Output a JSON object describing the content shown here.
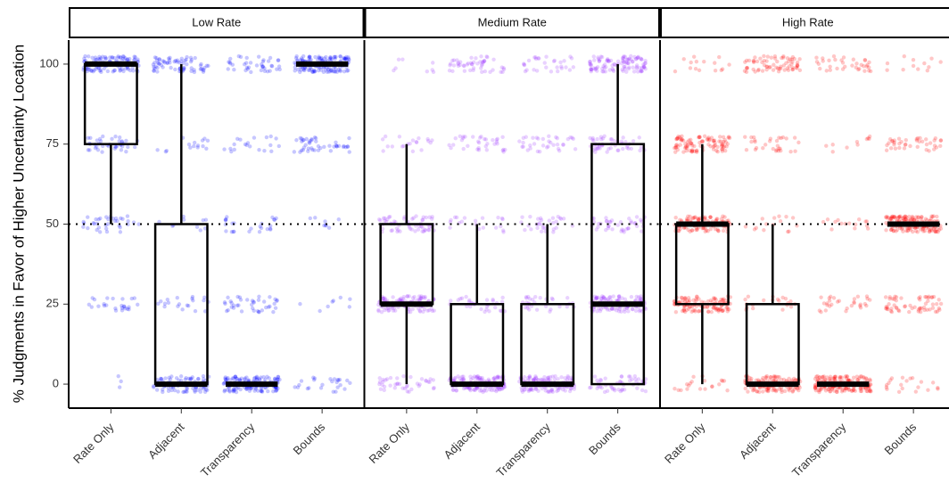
{
  "chart_data": {
    "type": "box",
    "y_label": "% Judgments in Favor of Higher Uncertainty Location",
    "categories": [
      "Rate Only",
      "Adjacent",
      "Transparency",
      "Bounds"
    ],
    "ylim": [
      -7.5,
      107.5
    ],
    "yticks": [
      0,
      25,
      50,
      75,
      100
    ],
    "hline": 50,
    "levels": [
      0,
      25,
      50,
      75,
      100
    ],
    "facets": [
      {
        "title": "Low Rate",
        "color": "#0000ff",
        "boxes": [
          {
            "min": 50,
            "q1": 75,
            "median": 100,
            "q3": 100,
            "max": 100,
            "counts": [
              3,
              25,
              35,
              40,
              120
            ]
          },
          {
            "min": 0,
            "q1": 0,
            "median": 0,
            "q3": 50,
            "max": 100,
            "counts": [
              80,
              20,
              10,
              15,
              70
            ]
          },
          {
            "min": 0,
            "q1": 0,
            "median": 0,
            "q3": 0,
            "max": 0,
            "counts": [
              150,
              40,
              25,
              20,
              40
            ]
          },
          {
            "min": 100,
            "q1": 100,
            "median": 100,
            "q3": 100,
            "max": 100,
            "counts": [
              25,
              8,
              8,
              45,
              150
            ]
          }
        ]
      },
      {
        "title": "Medium Rate",
        "color": "#9933ff",
        "boxes": [
          {
            "min": 0,
            "q1": 25,
            "median": 25,
            "q3": 50,
            "max": 75,
            "counts": [
              40,
              110,
              60,
              20,
              8
            ]
          },
          {
            "min": 0,
            "q1": 0,
            "median": 0,
            "q3": 25,
            "max": 50,
            "counts": [
              140,
              30,
              20,
              35,
              50
            ]
          },
          {
            "min": 0,
            "q1": 0,
            "median": 0,
            "q3": 25,
            "max": 50,
            "counts": [
              120,
              30,
              30,
              35,
              30
            ]
          },
          {
            "min": 0,
            "q1": 0,
            "median": 25,
            "q3": 75,
            "max": 100,
            "counts": [
              50,
              120,
              40,
              50,
              110
            ]
          }
        ]
      },
      {
        "title": "High Rate",
        "color": "#ff0000",
        "boxes": [
          {
            "min": 0,
            "q1": 25,
            "median": 50,
            "q3": 50,
            "max": 75,
            "counts": [
              20,
              120,
              110,
              100,
              15
            ]
          },
          {
            "min": 0,
            "q1": 0,
            "median": 0,
            "q3": 25,
            "max": 50,
            "counts": [
              130,
              20,
              15,
              30,
              70
            ]
          },
          {
            "min": 0,
            "q1": 0,
            "median": 0,
            "q3": 0,
            "max": 0,
            "counts": [
              180,
              30,
              15,
              10,
              35
            ]
          },
          {
            "min": 50,
            "q1": 50,
            "median": 50,
            "q3": 50,
            "max": 50,
            "counts": [
              20,
              60,
              160,
              40,
              12
            ]
          }
        ]
      }
    ]
  }
}
